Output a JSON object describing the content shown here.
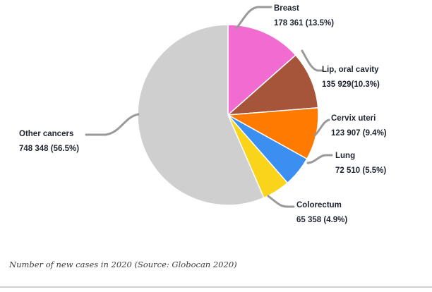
{
  "chart_data": {
    "type": "pie",
    "title": "",
    "slices": [
      {
        "name": "Breast",
        "value": 178361,
        "pct": "13.5%",
        "value_label": "178 361 (13.5%)",
        "color": "#f26bd0"
      },
      {
        "name": "Lip, oral cavity",
        "value": 135929,
        "pct": "10.3%",
        "value_label": "135 929(10.3%)",
        "color": "#a6543a"
      },
      {
        "name": "Cervix uteri",
        "value": 123907,
        "pct": "9.4%",
        "value_label": "123 907 (9.4%)",
        "color": "#ff7a00"
      },
      {
        "name": "Lung",
        "value": 72510,
        "pct": "5.5%",
        "value_label": "72 510 (5.5%)",
        "color": "#3b8ff0"
      },
      {
        "name": "Colorectum",
        "value": 65358,
        "pct": "4.9%",
        "value_label": "65 358 (4.9%)",
        "color": "#f9d41a"
      },
      {
        "name": "Other cancers",
        "value": 748348,
        "pct": "56.5%",
        "value_label": "748 348 (56.5%)",
        "color": "#cfcfcf"
      }
    ],
    "start_angle": "12 o'clock",
    "direction": "clockwise",
    "leader_line_color": "#9a9a9a"
  },
  "caption": "Number of new cases in 2020 (Source: Globocan 2020)"
}
